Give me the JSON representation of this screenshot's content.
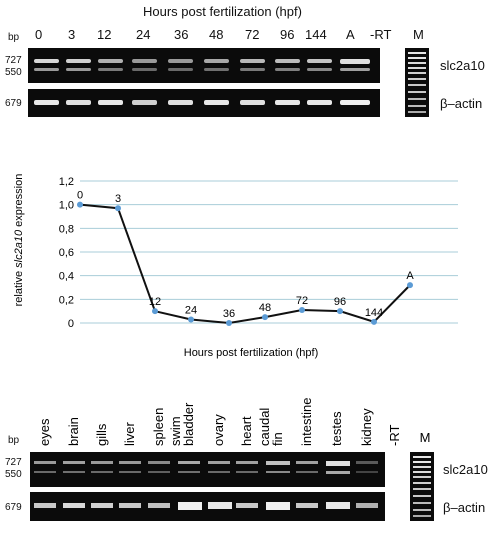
{
  "panel_a": {
    "title": "Hours post fertilization (hpf)",
    "bp_label": "bp",
    "lanes": [
      "0",
      "3",
      "12",
      "24",
      "36",
      "48",
      "72",
      "96",
      "144",
      "A",
      "-RT",
      "M"
    ],
    "size_top": [
      "727",
      "550"
    ],
    "size_bottom": "679",
    "gene_top": "slc2a10",
    "gene_bottom": "β–actin"
  },
  "chart": {
    "ylabel_prefix": "relative ",
    "ylabel_gene": "slc2a10",
    "ylabel_suffix": " expression",
    "xlabel": "Hours post fertilization (hpf)"
  },
  "chart_data": {
    "type": "line",
    "categories": [
      "0",
      "3",
      "12",
      "24",
      "36",
      "48",
      "72",
      "96",
      "144",
      "A"
    ],
    "values": [
      1.0,
      0.97,
      0.1,
      0.03,
      0.0,
      0.05,
      0.11,
      0.1,
      0.01,
      0.32
    ],
    "yticks": [
      "0",
      "0,2",
      "0,4",
      "0,6",
      "0,8",
      "1,0",
      "1,2"
    ],
    "ylim": [
      0,
      1.2
    ],
    "grid": true,
    "series_color": "#5b9bd5",
    "line_color": "#111111"
  },
  "panel_c": {
    "bp_label": "bp",
    "lanes": [
      "eyes",
      "brain",
      "gills",
      "liver",
      "spleen",
      "swim bladder",
      "ovary",
      "heart",
      "caudal fin",
      "intestine",
      "testes",
      "kidney",
      "-RT",
      "M"
    ],
    "size_top": [
      "727",
      "550"
    ],
    "size_bottom": "679",
    "gene_top": "slc2a10",
    "gene_bottom": "β–actin"
  }
}
